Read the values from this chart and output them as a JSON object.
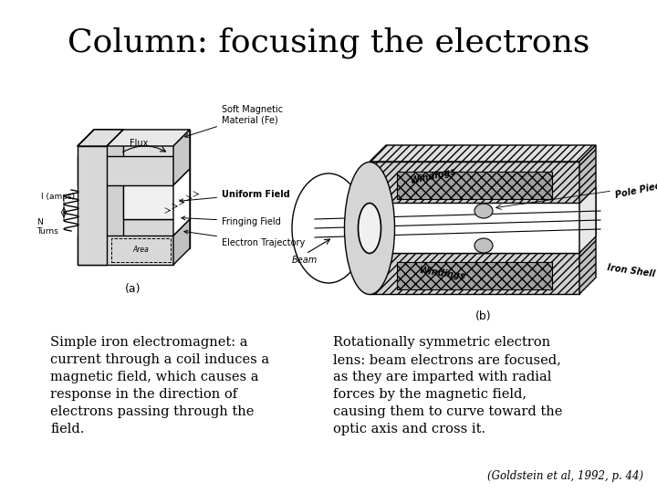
{
  "title": "Column: focusing the electrons",
  "title_fontsize": 26,
  "title_font": "serif",
  "bg_color": "#ffffff",
  "left_caption": "Simple iron electromagnet: a\ncurrent through a coil induces a\nmagnetic field, which causes a\nresponse in the direction of\nelectrons passing through the\nfield.",
  "right_caption": "Rotationally symmetric electron\nlens: beam electrons are focused,\nas they are imparted with radial\nforces by the magnetic field,\ncausing them to curve toward the\noptic axis and cross it.",
  "citation": "(Goldstein et al, 1992, p. 44)",
  "caption_fontsize": 10.5,
  "citation_fontsize": 8.5,
  "left_label": "(a)",
  "right_label": "(b)"
}
